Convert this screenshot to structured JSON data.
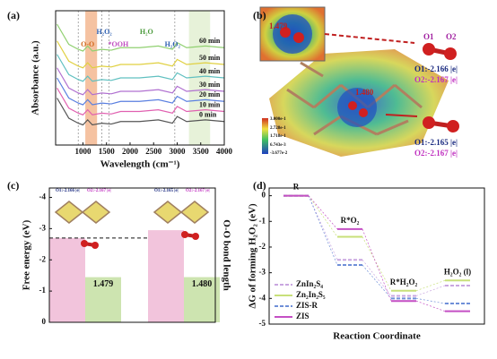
{
  "chart_data": [
    {
      "type": "line",
      "label": "(a)",
      "xlabel": "Wavelength (cm⁻¹)",
      "ylabel": "Absorbance (a.u.)",
      "xlim": [
        420,
        4000
      ],
      "xticks": [
        1000,
        1500,
        2000,
        2500,
        3000,
        3500,
        4000
      ],
      "ylim": [
        0,
        8
      ],
      "x": [
        450,
        700,
        900,
        1000,
        1100,
        1200,
        1400,
        1600,
        1800,
        2200,
        2600,
        2900,
        3000,
        3200,
        3600,
        4000
      ],
      "bands": [
        {
          "x": [
            1050,
            1300
          ],
          "color": "#f2b38a"
        },
        {
          "x": [
            3250,
            3700
          ],
          "color": "#e1efcf"
        }
      ],
      "vlines": [
        900,
        1400,
        1550,
        2950
      ],
      "annotations": [
        {
          "text": "O-O",
          "x": 1100,
          "color": "#d2691e"
        },
        {
          "text": "H₂O₂",
          "x": 1450,
          "color": "#2a5db0"
        },
        {
          "text": "*OOH",
          "x": 1750,
          "color": "#c04fc0"
        },
        {
          "text": "H₂O",
          "x": 2350,
          "color": "#4a9a3a"
        },
        {
          "text": "H₂O₂",
          "x": 2900,
          "color": "#2a5db0"
        }
      ],
      "series": [
        {
          "name": "0 min",
          "color": "#555555",
          "values": [
            2.8,
            1.6,
            1.3,
            1.2,
            1.5,
            1.2,
            1.3,
            1.25,
            1.4,
            1.4,
            1.5,
            1.3,
            1.7,
            1.4,
            1.5,
            1.4
          ]
        },
        {
          "name": "10 min",
          "color": "#e060b0",
          "values": [
            3.4,
            2.2,
            1.9,
            1.8,
            2.1,
            1.8,
            1.9,
            1.85,
            2.0,
            2.0,
            2.1,
            1.9,
            2.3,
            2.0,
            2.1,
            2.0
          ]
        },
        {
          "name": "20 min",
          "color": "#5a7fe0",
          "values": [
            4.0,
            2.8,
            2.5,
            2.4,
            2.7,
            2.4,
            2.5,
            2.45,
            2.6,
            2.6,
            2.7,
            2.5,
            2.9,
            2.6,
            2.7,
            2.6
          ]
        },
        {
          "name": "30 min",
          "color": "#b070d0",
          "values": [
            4.6,
            3.4,
            3.1,
            3.0,
            3.3,
            3.0,
            3.1,
            3.05,
            3.2,
            3.2,
            3.3,
            3.1,
            3.5,
            3.2,
            3.3,
            3.2
          ]
        },
        {
          "name": "40 min",
          "color": "#60c0c0",
          "values": [
            5.4,
            4.2,
            3.9,
            3.8,
            4.1,
            3.8,
            3.9,
            3.85,
            4.0,
            4.0,
            4.1,
            3.9,
            4.3,
            4.0,
            4.1,
            4.0
          ]
        },
        {
          "name": "50 min",
          "color": "#e0d040",
          "values": [
            6.2,
            5.0,
            4.7,
            4.6,
            4.9,
            4.6,
            4.7,
            4.65,
            4.8,
            4.8,
            4.9,
            4.7,
            5.1,
            4.8,
            4.9,
            4.8
          ]
        },
        {
          "name": "60 min",
          "color": "#90d070",
          "values": [
            7.2,
            6.0,
            5.7,
            5.6,
            5.9,
            5.6,
            5.7,
            5.65,
            5.8,
            5.8,
            5.9,
            5.7,
            6.1,
            5.8,
            5.9,
            5.8
          ]
        }
      ]
    },
    {
      "type": "bar",
      "label": "(c)",
      "ylabel": "Free energy (eV)",
      "y2label": "O-O bond length",
      "ylim": [
        0,
        -4.3
      ],
      "yticks": [
        0,
        -1,
        -2,
        -3,
        -4
      ],
      "y2lim": [
        0,
        4.4
      ],
      "annotations": [
        "O1:-2.166 |e|",
        "O2:-2.167 |e|",
        "O1:-2.165 |e|",
        "O2:-2.167 |e|"
      ],
      "series": [
        {
          "color": "#f2c4dc",
          "values": [
            -2.7,
            -2.95
          ]
        },
        {
          "color": "#cde4b0",
          "axis": "y2",
          "values": [
            1.479,
            1.48
          ],
          "value_labels": [
            "1.479",
            "1.480"
          ]
        }
      ]
    },
    {
      "type": "step",
      "label": "(d)",
      "ylabel": "ΔG of forming H₂O₂ (eV)",
      "xlabel": "Reaction Coordinate",
      "categories": [
        "R",
        "R*O₂",
        "R*H₂O₂",
        "H₂O₂ (l)"
      ],
      "ylim": [
        -5,
        0.3
      ],
      "yticks": [
        0,
        -1,
        -2,
        -3,
        -4,
        -5
      ],
      "series": [
        {
          "name": "ZnIn₂S₄",
          "color": "#c9a6e0",
          "dashed": true,
          "values": [
            0,
            -2.5,
            -3.9,
            -3.5
          ]
        },
        {
          "name": "Zn₂In₂S₅",
          "color": "#c8e07a",
          "dashed": false,
          "values": [
            0,
            -1.6,
            -3.7,
            -3.3
          ]
        },
        {
          "name": "ZIS-R",
          "color": "#6f8fd8",
          "dashed": true,
          "values": [
            0,
            -2.7,
            -4.0,
            -4.2
          ]
        },
        {
          "name": "ZIS",
          "color": "#c44fc4",
          "dashed": false,
          "values": [
            0,
            -1.3,
            -4.1,
            -4.5
          ]
        }
      ]
    }
  ],
  "panel_b": {
    "label": "(b)",
    "bond1": "1.479",
    "bond2": "1.480",
    "o1": "O1",
    "o2": "O2",
    "charges": [
      "O1:-2.166 |e|",
      "O2:-2.167 |e|",
      "O1:-2.165 |e|",
      "O2:-2.167 |e|"
    ],
    "colorbar": [
      "3.000e-1",
      "2.728e-1",
      "1.718e-1",
      "6.743e-3",
      "-3.677e-2"
    ]
  }
}
